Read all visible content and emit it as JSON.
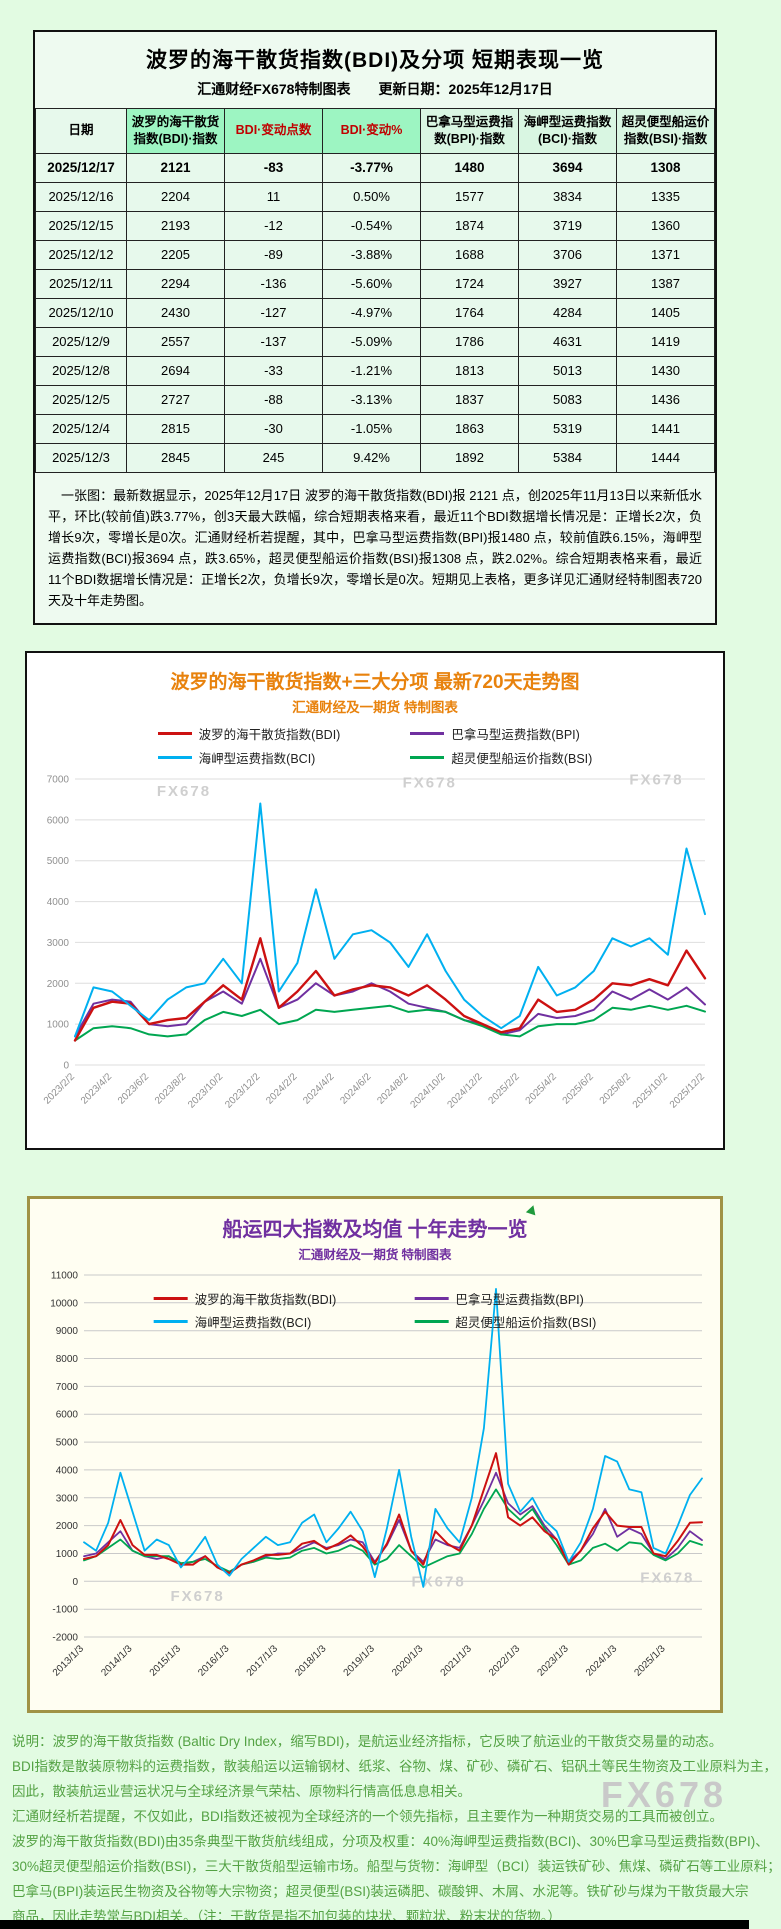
{
  "page": {
    "watermark_big": "FX678"
  },
  "colors": {
    "bdi": "#cc1111",
    "bpi": "#7030a0",
    "bci": "#00b0f0",
    "bsi": "#00a651",
    "page_bg": "#e2fbe2",
    "header_highlight": "#9df5c2",
    "top_title_orange": "#e8820d",
    "bottom_title_purple": "#7030a0",
    "notes_green": "#54a244"
  },
  "top_table": {
    "title": "波罗的海干散货指数(BDI)及分项  短期表现一览",
    "subtitle": "汇通财经FX678特制图表　　更新日期：2025年12月17日",
    "columns": [
      "日期",
      "波罗的海干散货指数(BDI)·指数",
      "BDI·变动点数",
      "BDI·变动%",
      "巴拿马型运费指数(BPI)·指数",
      "海岬型运费指数(BCI)·指数",
      "超灵便型船运价指数(BSI)·指数"
    ],
    "rows": [
      [
        "2025/12/17",
        "2121",
        "-83",
        "-3.77%",
        "1480",
        "3694",
        "1308"
      ],
      [
        "2025/12/16",
        "2204",
        "11",
        "0.50%",
        "1577",
        "3834",
        "1335"
      ],
      [
        "2025/12/15",
        "2193",
        "-12",
        "-0.54%",
        "1874",
        "3719",
        "1360"
      ],
      [
        "2025/12/12",
        "2205",
        "-89",
        "-3.88%",
        "1688",
        "3706",
        "1371"
      ],
      [
        "2025/12/11",
        "2294",
        "-136",
        "-5.60%",
        "1724",
        "3927",
        "1387"
      ],
      [
        "2025/12/10",
        "2430",
        "-127",
        "-4.97%",
        "1764",
        "4284",
        "1405"
      ],
      [
        "2025/12/9",
        "2557",
        "-137",
        "-5.09%",
        "1786",
        "4631",
        "1419"
      ],
      [
        "2025/12/8",
        "2694",
        "-33",
        "-1.21%",
        "1813",
        "5013",
        "1430"
      ],
      [
        "2025/12/5",
        "2727",
        "-88",
        "-3.13%",
        "1837",
        "5083",
        "1436"
      ],
      [
        "2025/12/4",
        "2815",
        "-30",
        "-1.05%",
        "1863",
        "5319",
        "1441"
      ],
      [
        "2025/12/3",
        "2845",
        "245",
        "9.42%",
        "1892",
        "5384",
        "1444"
      ]
    ],
    "summary": "　一张图：最新数据显示，2025年12月17日 波罗的海干散货指数(BDI)报 2121 点，创2025年11月13日以来新低水平，环比(较前值)跌3.77%，创3天最大跌幅，综合短期表格来看，最近11个BDI数据增长情况是：正增长2次，负增长9次，零增长是0次。汇通财经析若提醒，其中，巴拿马型运费指数(BPI)报1480 点，较前值跌6.15%，海岬型运费指数(BCI)报3694 点，跌3.65%，超灵便型船运价指数(BSI)报1308 点，跌2.02%。综合短期表格来看，最近11个BDI数据增长情况是：正增长2次，负增长9次，零增长是0次。短期见上表格，更多详见汇通财经特制图表720天及十年走势图。"
  },
  "chart_data": [
    {
      "type": "line",
      "title": "波罗的海干散货指数+三大分项  最新720天走势图",
      "subtitle": "汇通财经及一期货  特制图表",
      "ylim": [
        0,
        7000
      ],
      "ystep": 1000,
      "grid": "#dedede",
      "tick": "#909090",
      "legend_position": "top",
      "watermark": "FX678",
      "watermarks": [
        [
          0.13,
          0.06
        ],
        [
          0.52,
          0.03
        ],
        [
          0.88,
          0.02
        ]
      ],
      "margin": {
        "l": 48,
        "r": 16,
        "t": 10,
        "b": 76
      },
      "label_step": 2,
      "x_labels": [
        "2023/2/2",
        "2023/4/2",
        "2023/6/2",
        "2023/8/2",
        "2023/10/2",
        "2023/12/2",
        "2024/2/2",
        "2024/4/2",
        "2024/6/2",
        "2024/8/2",
        "2024/10/2",
        "2024/12/2",
        "2025/2/2",
        "2025/4/2",
        "2025/6/2",
        "2025/8/2",
        "2025/10/2",
        "2025/12/2"
      ],
      "draw_order": [
        1,
        3,
        0,
        2
      ],
      "series": [
        {
          "name": "波罗的海干散货指数(BDI)",
          "color": "#cc1111",
          "width": 2.4,
          "values": [
            600,
            1400,
            1550,
            1500,
            1000,
            1100,
            1150,
            1550,
            1950,
            1600,
            3100,
            1400,
            1800,
            2300,
            1700,
            1850,
            1950,
            1900,
            1700,
            1950,
            1600,
            1200,
            1000,
            800,
            900,
            1600,
            1300,
            1350,
            1600,
            2000,
            1950,
            2100,
            1950,
            2800,
            2121
          ]
        },
        {
          "name": "巴拿马型运费指数(BPI)",
          "color": "#7030a0",
          "width": 2,
          "values": [
            700,
            1500,
            1600,
            1550,
            1000,
            950,
            1000,
            1550,
            1800,
            1500,
            2600,
            1400,
            1600,
            2000,
            1700,
            1800,
            2000,
            1800,
            1500,
            1400,
            1300,
            1100,
            1000,
            750,
            850,
            1250,
            1150,
            1200,
            1350,
            1800,
            1600,
            1850,
            1600,
            1900,
            1480
          ]
        },
        {
          "name": "海岬型运费指数(BCI)",
          "color": "#00b0f0",
          "width": 2,
          "values": [
            700,
            1900,
            1800,
            1450,
            1100,
            1600,
            1900,
            2000,
            2600,
            2000,
            6400,
            1800,
            2500,
            4300,
            2600,
            3200,
            3300,
            3000,
            2400,
            3200,
            2300,
            1600,
            1200,
            900,
            1200,
            2400,
            1700,
            1900,
            2300,
            3100,
            2900,
            3100,
            2700,
            5300,
            3694
          ]
        },
        {
          "name": "超灵便型船运价指数(BSI)",
          "color": "#00a651",
          "width": 2,
          "values": [
            600,
            900,
            950,
            900,
            750,
            700,
            750,
            1100,
            1300,
            1200,
            1350,
            1000,
            1100,
            1350,
            1300,
            1350,
            1400,
            1450,
            1300,
            1350,
            1300,
            1100,
            950,
            750,
            700,
            950,
            1000,
            1000,
            1100,
            1400,
            1350,
            1450,
            1350,
            1450,
            1308
          ]
        }
      ]
    },
    {
      "type": "line",
      "title": "船运四大指数及均值 十年走势一览",
      "subtitle": "汇通财经及一期货 特制图表",
      "ylim": [
        -2000,
        11000
      ],
      "ystep": 1000,
      "grid": "#c9c9c9",
      "tick": "#333333",
      "legend_position": "top-inside",
      "watermark": "FX678",
      "watermarks": [
        [
          0.14,
          0.9
        ],
        [
          0.53,
          0.86
        ],
        [
          0.9,
          0.85
        ]
      ],
      "margin": {
        "l": 54,
        "r": 14,
        "t": 8,
        "b": 66
      },
      "label_step": 4,
      "x_labels": [
        "2013/1/3",
        "2014/1/3",
        "2015/1/3",
        "2016/1/3",
        "2017/1/3",
        "2018/1/3",
        "2019/1/3",
        "2020/1/3",
        "2021/1/3",
        "2022/1/3",
        "2023/1/3",
        "2024/1/3",
        "2025/1/3"
      ],
      "draw_order": [
        1,
        3,
        0,
        2
      ],
      "series": [
        {
          "name": "波罗的海干散货指数(BDI)",
          "color": "#cc1111",
          "width": 2,
          "values": [
            800,
            900,
            1300,
            2200,
            1300,
            950,
            950,
            800,
            600,
            600,
            900,
            500,
            300,
            600,
            750,
            950,
            950,
            1000,
            1350,
            1450,
            1150,
            1350,
            1650,
            1250,
            650,
            1350,
            2400,
            1100,
            600,
            1800,
            1350,
            1100,
            2000,
            3300,
            4600,
            2300,
            2000,
            2300,
            1800,
            1500,
            600,
            1100,
            1900,
            2500,
            2000,
            1950,
            1950,
            1000,
            900,
            1450,
            2100,
            2121
          ]
        },
        {
          "name": "巴拿马型运费指数(BPI)",
          "color": "#7030a0",
          "width": 1.8,
          "values": [
            900,
            1000,
            1400,
            1800,
            1100,
            900,
            800,
            900,
            600,
            700,
            900,
            500,
            300,
            600,
            700,
            900,
            1000,
            1000,
            1200,
            1400,
            1200,
            1300,
            1500,
            1400,
            700,
            1300,
            2200,
            1100,
            700,
            1500,
            1300,
            1200,
            2000,
            2900,
            3900,
            2800,
            2400,
            2700,
            2000,
            1500,
            700,
            1100,
            1700,
            2600,
            1600,
            1900,
            1700,
            1000,
            800,
            1200,
            1800,
            1480
          ]
        },
        {
          "name": "海岬型运费指数(BCI)",
          "color": "#00b0f0",
          "width": 1.8,
          "values": [
            1400,
            1100,
            2100,
            3900,
            2500,
            1100,
            1500,
            1300,
            500,
            1000,
            1600,
            600,
            200,
            800,
            1200,
            1600,
            1300,
            1400,
            2100,
            2400,
            1400,
            1900,
            2500,
            1800,
            150,
            1900,
            4000,
            1600,
            -200,
            2600,
            1900,
            1400,
            3000,
            5500,
            10500,
            3500,
            2500,
            3000,
            2200,
            1800,
            700,
            1400,
            2600,
            4500,
            4300,
            3300,
            3200,
            1200,
            1000,
            2000,
            3100,
            3694
          ]
        },
        {
          "name": "超灵便型船运价指数(BSI)",
          "color": "#00a651",
          "width": 1.8,
          "values": [
            750,
            900,
            1200,
            1500,
            1100,
            900,
            900,
            900,
            650,
            700,
            800,
            550,
            350,
            600,
            700,
            850,
            800,
            850,
            1100,
            1200,
            1000,
            1100,
            1300,
            1100,
            600,
            800,
            1300,
            900,
            500,
            700,
            900,
            1000,
            1700,
            2600,
            3300,
            2600,
            2200,
            2600,
            1900,
            1300,
            600,
            750,
            1200,
            1350,
            1100,
            1400,
            1350,
            950,
            750,
            1000,
            1450,
            1308
          ]
        }
      ]
    }
  ],
  "footer_notes": {
    "lines": [
      "说明：波罗的海干散货指数 (Baltic Dry Index，缩写BDI)，是航运业经济指标，它反映了航运业的干散货交易量的动态。",
      "BDI指数是散装原物料的运费指数，散装船运以运输钢材、纸浆、谷物、煤、矿砂、磷矿石、铝矾土等民生物资及工业原料为主，",
      "因此，散装航运业营运状况与全球经济景气荣枯、原物料行情高低息息相关。",
      "汇通财经析若提醒，不仅如此，BDI指数还被视为全球经济的一个领先指标，且主要作为一种期货交易的工具而被创立。",
      "波罗的海干散货指数(BDI)由35条典型干散货航线组成，分项及权重：40%海岬型运费指数(BCI)、30%巴拿马型运费指数(BPI)、",
      "30%超灵便型船运价指数(BSI)，三大干散货船型运输市场。船型与货物：海岬型（BCI）装运铁矿砂、焦煤、磷矿石等工业原料；",
      "巴拿马(BPI)装运民生物资及谷物等大宗物资；超灵便型(BSI)装运磷肥、碳酸钾、木屑、水泥等。铁矿砂与煤为干散货最大宗",
      "商品，因此走势常与BDI相关。（注：干散货是指不加包装的块状、颗粒状、粉末状的货物。）"
    ]
  }
}
